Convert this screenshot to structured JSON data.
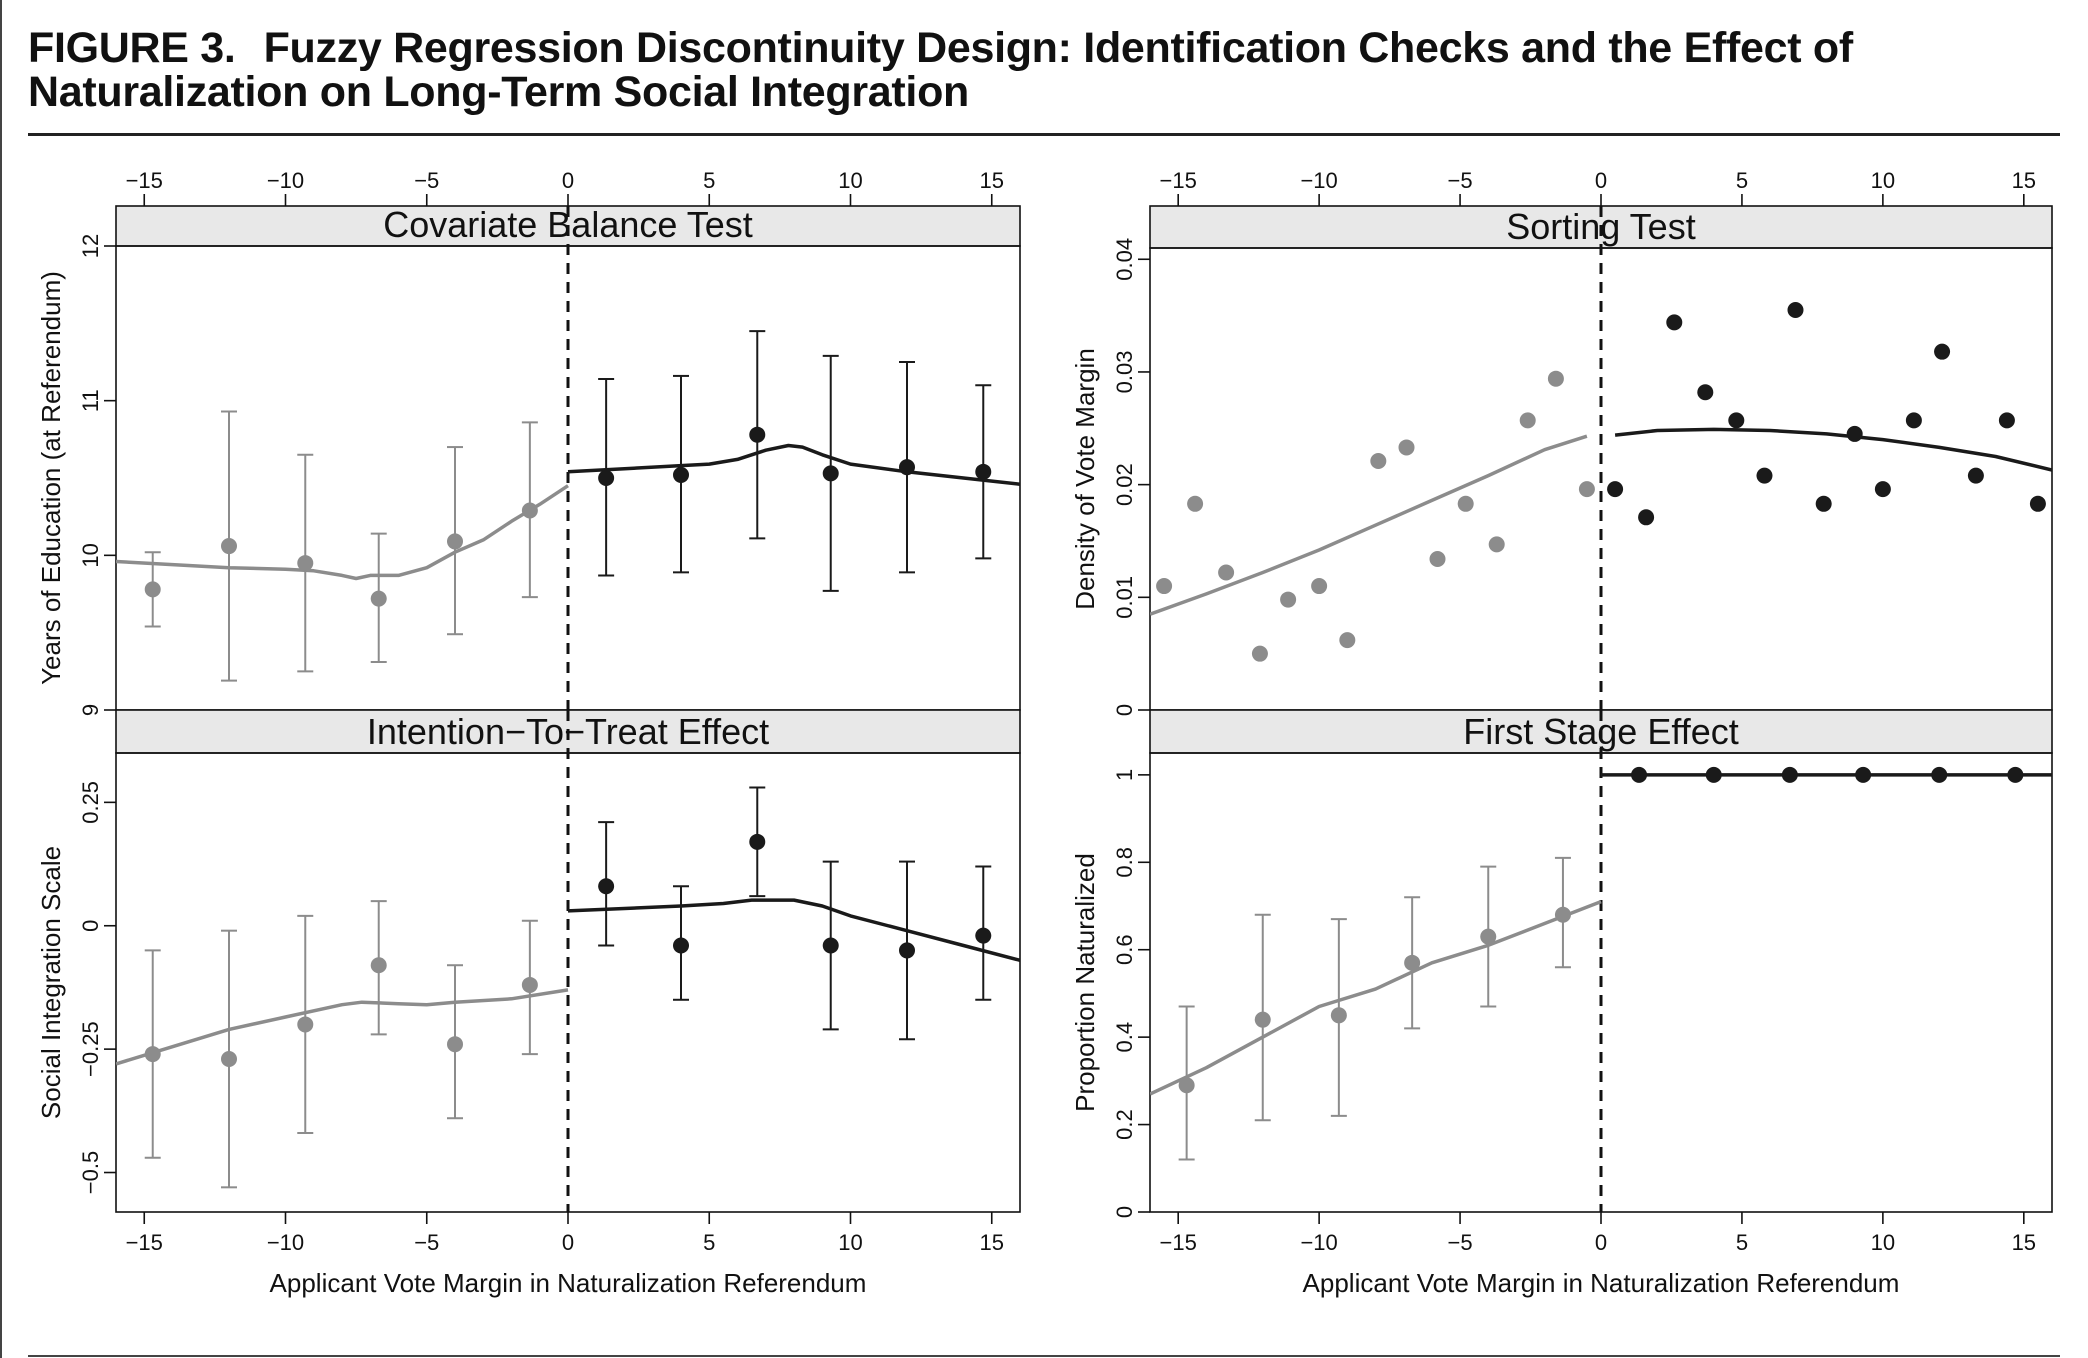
{
  "figure": {
    "label": "FIGURE 3.",
    "title": "Fuzzy Regression Discontinuity Design: Identification Checks and the Effect of Naturalization on Long-Term Social Integration"
  },
  "colors": {
    "control": "#8c8c8c",
    "treated": "#1a1a1a",
    "strip": "#e8e8e8",
    "ink": "#111111"
  },
  "chart_data": [
    {
      "panel": "Covariate Balance Test",
      "type": "scatter",
      "title": "Covariate Balance Test",
      "xlabel": "",
      "ylabel": "Years of Education (at Referendum)",
      "xlim": [
        -16,
        16
      ],
      "ylim": [
        9,
        12
      ],
      "xticks": [
        -15,
        -10,
        -5,
        0,
        5,
        10,
        15
      ],
      "xtick_labels": [
        "−15",
        "−10",
        "−5",
        "0",
        "5",
        "10",
        "15"
      ],
      "yticks": [
        9,
        10,
        11,
        12
      ],
      "ytick_labels": [
        "9",
        "10",
        "11",
        "12"
      ],
      "cutoff": 0,
      "series": [
        {
          "group": "control",
          "points": [
            [
              -14.7,
              9.78,
              9.54,
              10.02
            ],
            [
              -12.0,
              10.06,
              9.19,
              10.93
            ],
            [
              -9.3,
              9.95,
              9.25,
              10.65
            ],
            [
              -6.7,
              9.72,
              9.31,
              10.14
            ],
            [
              -4.0,
              10.09,
              9.49,
              10.7
            ],
            [
              -1.35,
              10.29,
              9.73,
              10.86
            ]
          ]
        },
        {
          "group": "treated",
          "points": [
            [
              1.35,
              10.5,
              9.87,
              11.14
            ],
            [
              4.0,
              10.52,
              9.89,
              11.16
            ],
            [
              6.7,
              10.78,
              10.11,
              11.45
            ],
            [
              9.3,
              10.53,
              9.77,
              11.29
            ],
            [
              12.0,
              10.57,
              9.89,
              11.25
            ],
            [
              14.7,
              10.54,
              9.98,
              11.1
            ]
          ]
        }
      ],
      "fits": [
        {
          "group": "control",
          "points": [
            [
              -16,
              9.96
            ],
            [
              -14,
              9.94
            ],
            [
              -12,
              9.92
            ],
            [
              -10,
              9.91
            ],
            [
              -9,
              9.9
            ],
            [
              -8,
              9.87
            ],
            [
              -7.5,
              9.85
            ],
            [
              -7,
              9.87
            ],
            [
              -6,
              9.87
            ],
            [
              -5,
              9.92
            ],
            [
              -4,
              10.02
            ],
            [
              -3,
              10.1
            ],
            [
              -2,
              10.22
            ],
            [
              -1,
              10.33
            ],
            [
              0,
              10.45
            ]
          ]
        },
        {
          "group": "treated",
          "points": [
            [
              0,
              10.54
            ],
            [
              2,
              10.56
            ],
            [
              4,
              10.58
            ],
            [
              5,
              10.59
            ],
            [
              6,
              10.62
            ],
            [
              7,
              10.68
            ],
            [
              7.8,
              10.71
            ],
            [
              8.3,
              10.7
            ],
            [
              9,
              10.65
            ],
            [
              10,
              10.59
            ],
            [
              12,
              10.54
            ],
            [
              14,
              10.5
            ],
            [
              16,
              10.46
            ]
          ]
        }
      ]
    },
    {
      "panel": "Sorting Test",
      "type": "scatter",
      "title": "Sorting Test",
      "xlabel": "",
      "ylabel": "Density of Vote Margin",
      "xlim": [
        -16,
        16
      ],
      "ylim": [
        0,
        0.041
      ],
      "xticks": [
        -15,
        -10,
        -5,
        0,
        5,
        10,
        15
      ],
      "xtick_labels": [
        "−15",
        "−10",
        "−5",
        "0",
        "5",
        "10",
        "15"
      ],
      "yticks": [
        0,
        0.01,
        0.02,
        0.03,
        0.04
      ],
      "ytick_labels": [
        "0",
        "0.01",
        "0.02",
        "0.03",
        "0.04"
      ],
      "cutoff": 0,
      "series": [
        {
          "group": "control",
          "points": [
            [
              -15.5,
              0.011
            ],
            [
              -14.4,
              0.0183
            ],
            [
              -13.3,
              0.0122
            ],
            [
              -12.1,
              0.005
            ],
            [
              -11.1,
              0.0098
            ],
            [
              -10.0,
              0.011
            ],
            [
              -9.0,
              0.0062
            ],
            [
              -7.9,
              0.0221
            ],
            [
              -6.9,
              0.0233
            ],
            [
              -5.8,
              0.0134
            ],
            [
              -4.8,
              0.0183
            ],
            [
              -3.7,
              0.0147
            ],
            [
              -2.6,
              0.0257
            ],
            [
              -1.6,
              0.0294
            ],
            [
              -0.5,
              0.0196
            ]
          ]
        },
        {
          "group": "treated",
          "points": [
            [
              0.5,
              0.0196
            ],
            [
              1.6,
              0.0171
            ],
            [
              2.6,
              0.0344
            ],
            [
              3.7,
              0.0282
            ],
            [
              4.8,
              0.0257
            ],
            [
              5.8,
              0.0208
            ],
            [
              6.9,
              0.0355
            ],
            [
              7.9,
              0.0183
            ],
            [
              9.0,
              0.0245
            ],
            [
              10.0,
              0.0196
            ],
            [
              11.1,
              0.0257
            ],
            [
              12.1,
              0.0318
            ],
            [
              13.3,
              0.0208
            ],
            [
              14.4,
              0.0257
            ],
            [
              15.5,
              0.0183
            ]
          ]
        }
      ],
      "fits": [
        {
          "group": "control",
          "points": [
            [
              -16,
              0.0085
            ],
            [
              -14,
              0.0103
            ],
            [
              -12,
              0.0122
            ],
            [
              -10,
              0.0142
            ],
            [
              -8,
              0.0164
            ],
            [
              -6,
              0.0186
            ],
            [
              -4,
              0.0208
            ],
            [
              -2,
              0.0231
            ],
            [
              -0.5,
              0.0243
            ]
          ]
        },
        {
          "group": "treated",
          "points": [
            [
              0.5,
              0.0244
            ],
            [
              2,
              0.0248
            ],
            [
              4,
              0.0249
            ],
            [
              6,
              0.0248
            ],
            [
              8,
              0.0245
            ],
            [
              10,
              0.024
            ],
            [
              12,
              0.0233
            ],
            [
              14,
              0.0225
            ],
            [
              16,
              0.0213
            ]
          ]
        }
      ]
    },
    {
      "panel": "Intention-To-Treat Effect",
      "type": "scatter",
      "title": "Intention−To−Treat Effect",
      "xlabel": "Applicant Vote Margin in Naturalization Referendum",
      "ylabel": "Social Integration Scale",
      "xlim": [
        -16,
        16
      ],
      "ylim": [
        -0.58,
        0.35
      ],
      "xticks": [
        -15,
        -10,
        -5,
        0,
        5,
        10,
        15
      ],
      "xtick_labels": [
        "−15",
        "−10",
        "−5",
        "0",
        "5",
        "10",
        "15"
      ],
      "yticks": [
        -0.5,
        -0.25,
        0,
        0.25
      ],
      "ytick_labels": [
        "−0.5",
        "−0.25",
        "0",
        "0.25"
      ],
      "cutoff": 0,
      "series": [
        {
          "group": "control",
          "points": [
            [
              -14.7,
              -0.26,
              -0.47,
              -0.05
            ],
            [
              -12.0,
              -0.27,
              -0.53,
              -0.01
            ],
            [
              -9.3,
              -0.2,
              -0.42,
              0.02
            ],
            [
              -6.7,
              -0.08,
              -0.22,
              0.05
            ],
            [
              -4.0,
              -0.24,
              -0.39,
              -0.08
            ],
            [
              -1.35,
              -0.12,
              -0.26,
              0.01
            ]
          ]
        },
        {
          "group": "treated",
          "points": [
            [
              1.35,
              0.08,
              -0.04,
              0.21
            ],
            [
              4.0,
              -0.04,
              -0.15,
              0.08
            ],
            [
              6.7,
              0.17,
              0.06,
              0.28
            ],
            [
              9.3,
              -0.04,
              -0.21,
              0.13
            ],
            [
              12.0,
              -0.05,
              -0.23,
              0.13
            ],
            [
              14.7,
              -0.02,
              -0.15,
              0.12
            ]
          ]
        }
      ],
      "fits": [
        {
          "group": "control",
          "points": [
            [
              -16,
              -0.28
            ],
            [
              -14,
              -0.245
            ],
            [
              -12,
              -0.21
            ],
            [
              -10,
              -0.185
            ],
            [
              -8,
              -0.16
            ],
            [
              -7.3,
              -0.155
            ],
            [
              -6,
              -0.158
            ],
            [
              -5,
              -0.16
            ],
            [
              -4,
              -0.155
            ],
            [
              -2,
              -0.148
            ],
            [
              0,
              -0.13
            ]
          ]
        },
        {
          "group": "treated",
          "points": [
            [
              0,
              0.03
            ],
            [
              2,
              0.035
            ],
            [
              4,
              0.04
            ],
            [
              5.5,
              0.045
            ],
            [
              6.5,
              0.052
            ],
            [
              8,
              0.052
            ],
            [
              9,
              0.04
            ],
            [
              10,
              0.02
            ],
            [
              12,
              -0.01
            ],
            [
              14,
              -0.04
            ],
            [
              16,
              -0.07
            ]
          ]
        }
      ]
    },
    {
      "panel": "First Stage Effect",
      "type": "scatter",
      "title": "First Stage Effect",
      "xlabel": "Applicant Vote Margin in Naturalization Referendum",
      "ylabel": "Proportion Naturalized",
      "xlim": [
        -16,
        16
      ],
      "ylim": [
        0,
        1.05
      ],
      "xticks": [
        -15,
        -10,
        -5,
        0,
        5,
        10,
        15
      ],
      "xtick_labels": [
        "−15",
        "−10",
        "−5",
        "0",
        "5",
        "10",
        "15"
      ],
      "yticks": [
        0,
        0.2,
        0.4,
        0.6,
        0.8,
        1
      ],
      "ytick_labels": [
        "0",
        "0.2",
        "0.4",
        "0.6",
        "0.8",
        "1"
      ],
      "cutoff": 0,
      "series": [
        {
          "group": "control",
          "points": [
            [
              -14.7,
              0.29,
              0.12,
              0.47
            ],
            [
              -12.0,
              0.44,
              0.21,
              0.68
            ],
            [
              -9.3,
              0.45,
              0.22,
              0.67
            ],
            [
              -6.7,
              0.57,
              0.42,
              0.72
            ],
            [
              -4.0,
              0.63,
              0.47,
              0.79
            ],
            [
              -1.35,
              0.68,
              0.56,
              0.81
            ]
          ]
        },
        {
          "group": "treated",
          "points": [
            [
              1.35,
              1.0
            ],
            [
              4.0,
              1.0
            ],
            [
              6.7,
              1.0
            ],
            [
              9.3,
              1.0
            ],
            [
              12.0,
              1.0
            ],
            [
              14.7,
              1.0
            ]
          ]
        }
      ],
      "fits": [
        {
          "group": "control",
          "points": [
            [
              -16,
              0.27
            ],
            [
              -14,
              0.33
            ],
            [
              -12,
              0.4
            ],
            [
              -10,
              0.47
            ],
            [
              -8,
              0.51
            ],
            [
              -7,
              0.54
            ],
            [
              -6,
              0.57
            ],
            [
              -4,
              0.61
            ],
            [
              -2,
              0.66
            ],
            [
              0,
              0.71
            ]
          ]
        },
        {
          "group": "treated",
          "points": [
            [
              0,
              1.0
            ],
            [
              16,
              1.0
            ]
          ]
        }
      ]
    }
  ]
}
